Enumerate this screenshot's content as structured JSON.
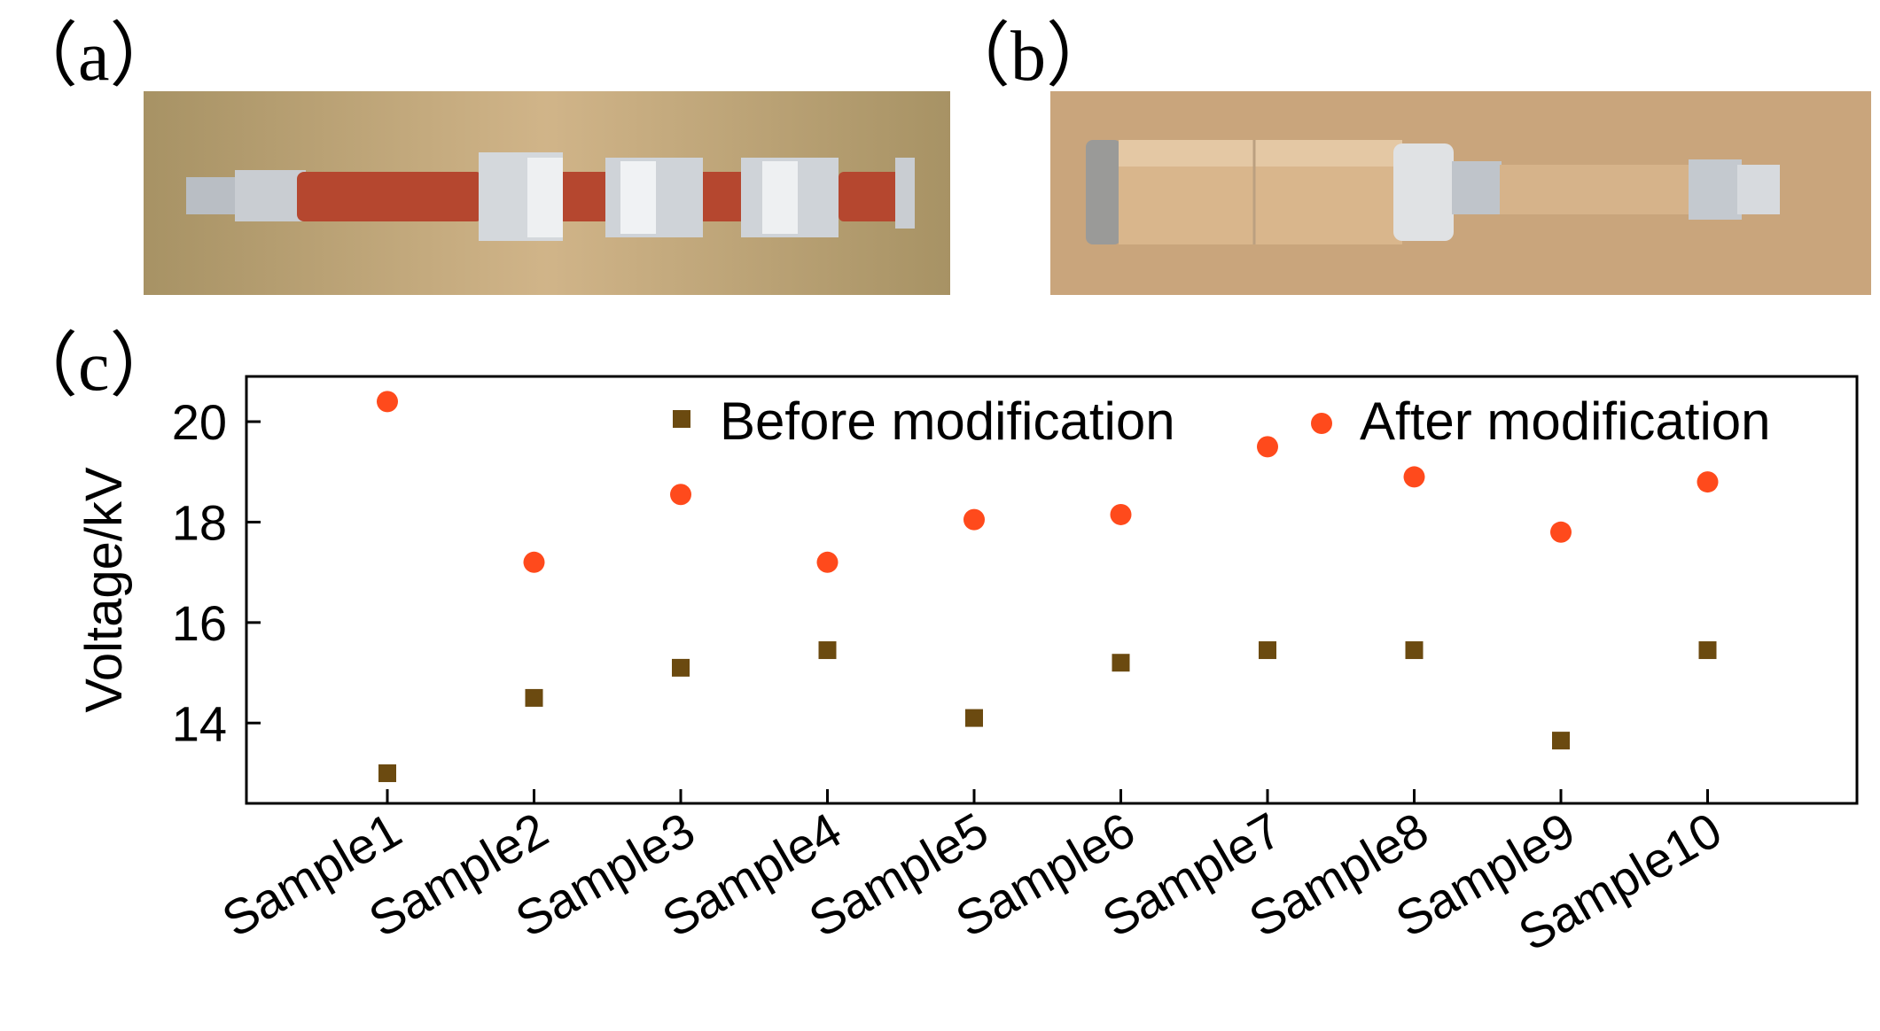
{
  "panels": {
    "a": {
      "label": "（a）"
    },
    "b": {
      "label": "（b）"
    },
    "c": {
      "label": "（c）"
    }
  },
  "photo_a": {
    "background": "#c8a878",
    "rod_red": "#b5472f",
    "metal": "#c9cdd2"
  },
  "photo_b": {
    "background": "#c9a57c",
    "tube": "#d9b68c",
    "metal": "#c4c9cf"
  },
  "chart_data": {
    "type": "scatter",
    "categories": [
      "Sample1",
      "Sample2",
      "Sample3",
      "Sample4",
      "Sample5",
      "Sample6",
      "Sample7",
      "Sample8",
      "Sample9",
      "Sample10"
    ],
    "series": [
      {
        "name": "Before modification",
        "marker": "square",
        "color": "#6b4a10",
        "values": [
          13.0,
          14.5,
          15.1,
          15.45,
          14.1,
          15.2,
          15.45,
          15.45,
          13.65,
          15.45
        ]
      },
      {
        "name": "After modification",
        "marker": "circle",
        "color": "#ff4a1c",
        "values": [
          20.4,
          17.2,
          18.55,
          17.2,
          18.05,
          18.15,
          19.5,
          18.9,
          17.8,
          18.8
        ]
      }
    ],
    "title": "",
    "xlabel": "",
    "ylabel": "Voltage/kV",
    "ylim": [
      12.4,
      20.9
    ],
    "yticks": [
      14,
      16,
      18,
      20
    ],
    "legend_placement": "top-right",
    "grid": false
  }
}
